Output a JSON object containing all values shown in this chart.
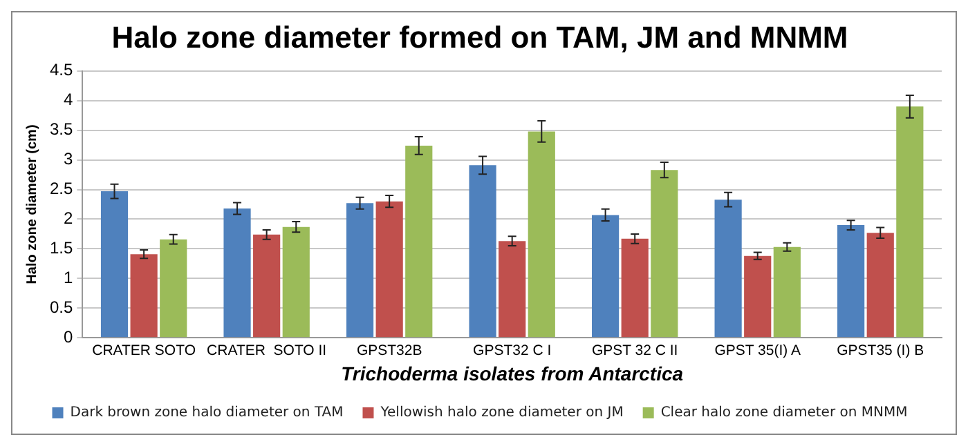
{
  "chart_data": {
    "type": "bar",
    "title": "Halo zone diameter formed on TAM, JM and MNMM",
    "xlabel": "Trichoderma isolates from Antarctica",
    "ylabel": "Halo zone diameter (cm)",
    "categories": [
      "CRATER SOTO",
      "CRATER  SOTO II",
      "GPST32B",
      "GPST32 C I",
      "GPST 32 C II",
      "GPST 35(I) A",
      "GPST35 (I) B"
    ],
    "series": [
      {
        "name": "Dark brown zone halo diameter on TAM",
        "color": "#4f81bd",
        "values": [
          2.47,
          2.18,
          2.27,
          2.91,
          2.07,
          2.33,
          1.9
        ],
        "errors": [
          0.12,
          0.1,
          0.1,
          0.15,
          0.1,
          0.12,
          0.08
        ]
      },
      {
        "name": "Yellowish halo zone diameter on JM",
        "color": "#c0504d",
        "values": [
          1.41,
          1.74,
          2.3,
          1.63,
          1.67,
          1.38,
          1.77
        ],
        "errors": [
          0.07,
          0.08,
          0.1,
          0.08,
          0.08,
          0.06,
          0.09
        ]
      },
      {
        "name": "Clear halo zone diameter on MNMM",
        "color": "#9bbb59",
        "values": [
          1.66,
          1.87,
          3.24,
          3.48,
          2.83,
          1.53,
          3.9
        ],
        "errors": [
          0.08,
          0.09,
          0.15,
          0.18,
          0.13,
          0.07,
          0.19
        ]
      }
    ],
    "ylim": [
      0,
      4.5
    ],
    "yticks": [
      0,
      0.5,
      1,
      1.5,
      2,
      2.5,
      3,
      3.5,
      4,
      4.5
    ],
    "grid": "y",
    "legend": "bottom"
  }
}
